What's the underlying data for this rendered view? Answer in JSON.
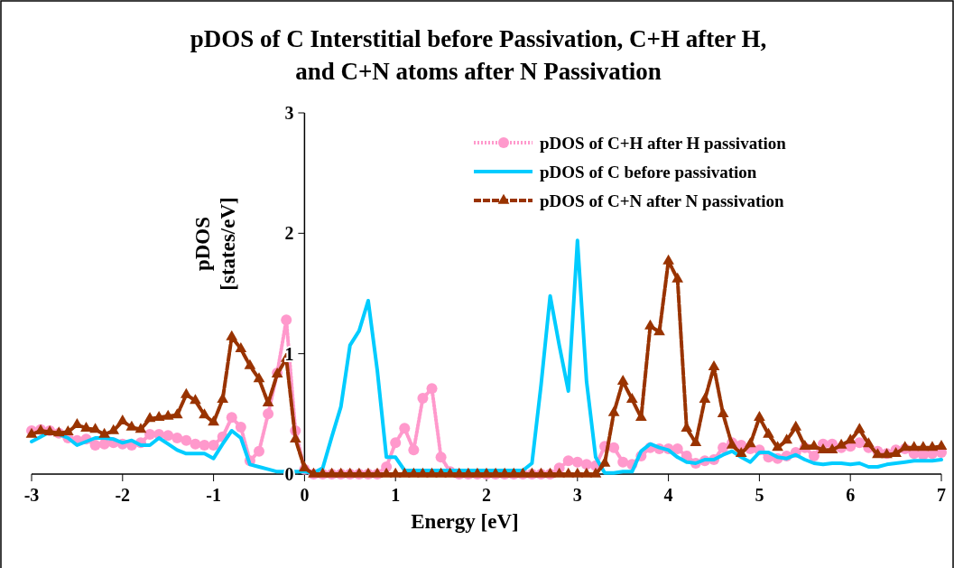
{
  "chart_data": {
    "type": "line",
    "title": "pDOS of C Interstitial before Passivation, C+H after H,\nand C+N atoms after N Passivation",
    "xlabel": "Energy [eV]",
    "ylabel": "pDOS\n[states/eV]",
    "x": [
      -3.0,
      -2.9,
      -2.8,
      -2.7,
      -2.6,
      -2.5,
      -2.4,
      -2.3,
      -2.2,
      -2.1,
      -2.0,
      -1.9,
      -1.8,
      -1.7,
      -1.6,
      -1.5,
      -1.4,
      -1.3,
      -1.2,
      -1.1,
      -1.0,
      -0.9,
      -0.8,
      -0.7,
      -0.6,
      -0.5,
      -0.4,
      -0.3,
      -0.2,
      -0.1,
      0.0,
      0.1,
      0.2,
      0.3,
      0.4,
      0.5,
      0.6,
      0.7,
      0.8,
      0.9,
      1.0,
      1.1,
      1.2,
      1.3,
      1.4,
      1.5,
      1.6,
      1.7,
      1.8,
      1.9,
      2.0,
      2.1,
      2.2,
      2.3,
      2.4,
      2.5,
      2.6,
      2.7,
      2.8,
      2.9,
      3.0,
      3.1,
      3.2,
      3.3,
      3.4,
      3.5,
      3.6,
      3.7,
      3.8,
      3.9,
      4.0,
      4.1,
      4.2,
      4.3,
      4.4,
      4.5,
      4.6,
      4.7,
      4.8,
      4.9,
      5.0,
      5.1,
      5.2,
      5.3,
      5.4,
      5.5,
      5.6,
      5.7,
      5.8,
      5.9,
      6.0,
      6.1,
      6.2,
      6.3,
      6.4,
      6.5,
      6.6,
      6.7,
      6.8,
      6.9,
      7.0
    ],
    "series": [
      {
        "name": "pDOS of C+H after H passivation",
        "color": "#ff99cc",
        "marker": "circle",
        "line_style": "dotted",
        "values": [
          0.36,
          0.37,
          0.36,
          0.34,
          0.3,
          0.28,
          0.29,
          0.24,
          0.25,
          0.26,
          0.25,
          0.24,
          0.26,
          0.33,
          0.33,
          0.32,
          0.3,
          0.28,
          0.25,
          0.24,
          0.24,
          0.31,
          0.47,
          0.39,
          0.11,
          0.19,
          0.5,
          0.84,
          1.28,
          0.36,
          0.04,
          0,
          0,
          0,
          0,
          0,
          0,
          0,
          0,
          0.06,
          0.26,
          0.38,
          0.2,
          0.63,
          0.71,
          0.14,
          0.02,
          0,
          0,
          0,
          0,
          0,
          0,
          0,
          0,
          0,
          0,
          0,
          0.05,
          0.11,
          0.1,
          0.08,
          0.07,
          0.23,
          0.22,
          0.1,
          0.08,
          0.15,
          0.22,
          0.21,
          0.21,
          0.21,
          0.15,
          0.09,
          0.11,
          0.12,
          0.22,
          0.26,
          0.24,
          0.21,
          0.2,
          0.14,
          0.13,
          0.15,
          0.18,
          0.22,
          0.15,
          0.25,
          0.25,
          0.22,
          0.23,
          0.26,
          0.22,
          0.19,
          0.17,
          0.2,
          0.21,
          0.17,
          0.16,
          0.17,
          0.18
        ]
      },
      {
        "name": "pDOS of C before passivation",
        "color": "#00ccff",
        "marker": "none",
        "line_style": "solid",
        "values": [
          0.27,
          0.31,
          0.35,
          0.33,
          0.3,
          0.24,
          0.27,
          0.3,
          0.3,
          0.29,
          0.26,
          0.28,
          0.24,
          0.24,
          0.3,
          0.25,
          0.2,
          0.17,
          0.17,
          0.17,
          0.13,
          0.25,
          0.36,
          0.3,
          0.08,
          0.06,
          0.04,
          0.02,
          0.02,
          0.02,
          0.02,
          0.01,
          0.05,
          0.31,
          0.56,
          1.07,
          1.19,
          1.44,
          0.86,
          0.14,
          0.14,
          0.03,
          0.03,
          0.03,
          0.03,
          0.03,
          0.03,
          0.03,
          0.03,
          0.03,
          0.03,
          0.03,
          0.03,
          0.03,
          0.03,
          0.09,
          0.74,
          1.48,
          1.07,
          0.69,
          1.94,
          0.77,
          0.14,
          0.01,
          0.01,
          0.02,
          0.02,
          0.19,
          0.25,
          0.22,
          0.2,
          0.14,
          0.1,
          0.09,
          0.12,
          0.12,
          0.16,
          0.19,
          0.14,
          0.1,
          0.18,
          0.18,
          0.14,
          0.13,
          0.16,
          0.12,
          0.09,
          0.08,
          0.09,
          0.09,
          0.08,
          0.09,
          0.06,
          0.06,
          0.08,
          0.09,
          0.1,
          0.11,
          0.11,
          0.11,
          0.12
        ]
      },
      {
        "name": "pDOS of C+N after N passivation",
        "color": "#993300",
        "marker": "triangle",
        "line_style": "dashed",
        "values": [
          0.33,
          0.36,
          0.35,
          0.34,
          0.35,
          0.41,
          0.38,
          0.37,
          0.33,
          0.36,
          0.44,
          0.39,
          0.37,
          0.46,
          0.47,
          0.48,
          0.49,
          0.66,
          0.61,
          0.49,
          0.43,
          0.62,
          1.14,
          1.04,
          0.9,
          0.79,
          0.59,
          0.83,
          0.96,
          0.29,
          0.05,
          0,
          0,
          0,
          0,
          0,
          0,
          0,
          0,
          0,
          0,
          0,
          0,
          0,
          0,
          0,
          0,
          0,
          0,
          0,
          0,
          0,
          0,
          0,
          0,
          0,
          0,
          0,
          0,
          0,
          0,
          0,
          0,
          0.09,
          0.51,
          0.77,
          0.62,
          0.47,
          1.23,
          1.18,
          1.77,
          1.62,
          0.38,
          0.26,
          0.62,
          0.89,
          0.5,
          0.24,
          0.17,
          0.25,
          0.47,
          0.33,
          0.22,
          0.28,
          0.39,
          0.23,
          0.23,
          0.2,
          0.2,
          0.24,
          0.28,
          0.37,
          0.25,
          0.16,
          0.16,
          0.17,
          0.22,
          0.22,
          0.22,
          0.22,
          0.23
        ]
      }
    ],
    "xlim": [
      -3,
      7
    ],
    "xticks": [
      -3,
      -2,
      -1,
      0,
      1,
      2,
      3,
      4,
      5,
      6,
      7
    ],
    "ylim": [
      0,
      3
    ],
    "yticks": [
      0,
      1,
      2,
      3
    ],
    "grid": false,
    "legend": "top right"
  }
}
